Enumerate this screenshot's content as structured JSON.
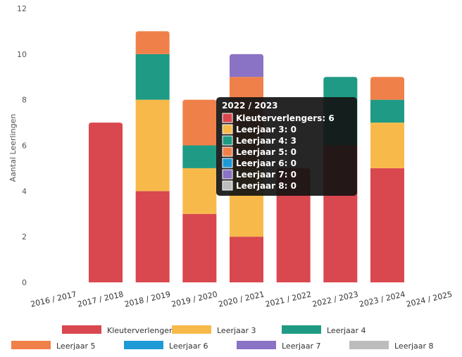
{
  "chart_data": {
    "type": "bar",
    "stacked": true,
    "ylabel": "Aantal Leerlingen",
    "ylim": [
      0,
      12
    ],
    "yticks": [
      0,
      2,
      4,
      6,
      8,
      10,
      12
    ],
    "grid": false,
    "legend_position": "bottom",
    "categories": [
      "2016 / 2017",
      "2017 / 2018",
      "2018 / 2019",
      "2019 / 2020",
      "2020 / 2021",
      "2021 / 2022",
      "2022 / 2023",
      "2023 / 2024",
      "2024 / 2025"
    ],
    "series": [
      {
        "name": "Kleuterverlengers",
        "color": "#d9474f",
        "values": [
          0,
          7,
          4,
          3,
          2,
          5,
          6,
          5,
          0
        ]
      },
      {
        "name": "Leerjaar 3",
        "color": "#f7ba4a",
        "values": [
          0,
          0,
          4,
          2,
          3,
          0,
          0,
          2,
          0
        ]
      },
      {
        "name": "Leerjaar 4",
        "color": "#1f9a84",
        "values": [
          0,
          0,
          2,
          1,
          0,
          0,
          3,
          1,
          0
        ]
      },
      {
        "name": "Leerjaar 5",
        "color": "#f0804a",
        "values": [
          0,
          0,
          1,
          2,
          4,
          0,
          0,
          1,
          0
        ]
      },
      {
        "name": "Leerjaar 6",
        "color": "#1e9ad6",
        "values": [
          0,
          0,
          0,
          0,
          0,
          0,
          0,
          0,
          0
        ]
      },
      {
        "name": "Leerjaar 7",
        "color": "#8a72c4",
        "values": [
          0,
          0,
          0,
          0,
          1,
          0,
          0,
          0,
          0
        ]
      },
      {
        "name": "Leerjaar 8",
        "color": "#bdbdbd",
        "values": [
          0,
          0,
          0,
          0,
          0,
          0,
          0,
          0,
          0
        ]
      }
    ],
    "tooltip": {
      "title": "2022 / 2023",
      "lines": [
        {
          "label": "Kleuterverlengers: 6",
          "color": "#d9474f"
        },
        {
          "label": "Leerjaar 3: 0",
          "color": "#f7ba4a"
        },
        {
          "label": "Leerjaar 4: 3",
          "color": "#1f9a84"
        },
        {
          "label": "Leerjaar 5: 0",
          "color": "#f0804a"
        },
        {
          "label": "Leerjaar 6: 0",
          "color": "#1e9ad6"
        },
        {
          "label": "Leerjaar 7: 0",
          "color": "#8a72c4"
        },
        {
          "label": "Leerjaar 8: 0",
          "color": "#bdbdbd"
        }
      ]
    }
  }
}
